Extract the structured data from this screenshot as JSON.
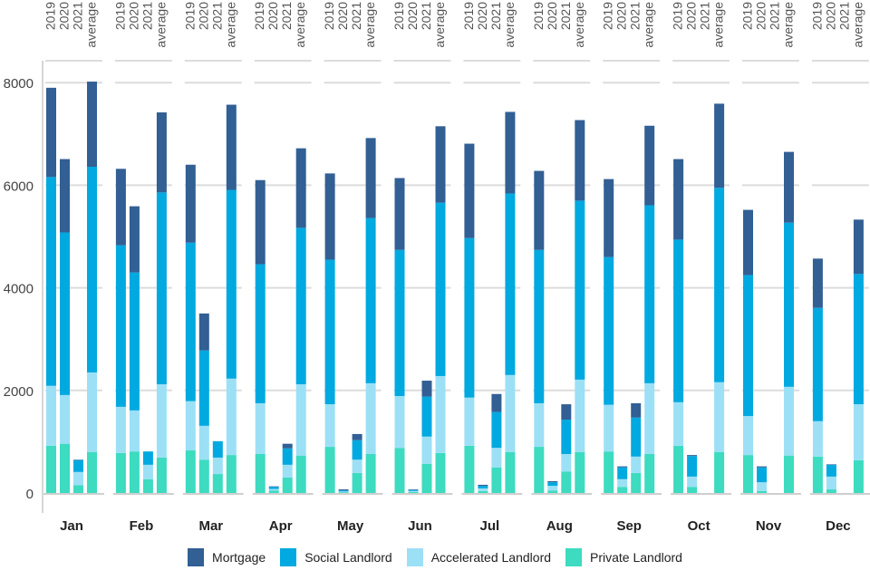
{
  "chart_data": {
    "type": "bar",
    "stacked": true,
    "title": "",
    "xlabel": "",
    "ylabel": "",
    "ylim": [
      0,
      8400
    ],
    "yticks": [
      0,
      2000,
      4000,
      6000,
      8000
    ],
    "grid": true,
    "legend_position": "bottom",
    "categories": [
      "Jan",
      "Feb",
      "Mar",
      "Apr",
      "May",
      "Jun",
      "Jul",
      "Aug",
      "Sep",
      "Oct",
      "Nov",
      "Dec"
    ],
    "subcategories": [
      "2019",
      "2020",
      "2021",
      "average"
    ],
    "series": [
      {
        "name": "Private Landlord",
        "color": "#3ddbc0",
        "values": {
          "2019": [
            920,
            780,
            830,
            760,
            900,
            880,
            920,
            900,
            810,
            920,
            740,
            710
          ],
          "2020": [
            960,
            810,
            650,
            50,
            15,
            20,
            40,
            50,
            120,
            120,
            40,
            70
          ],
          "2021": [
            150,
            270,
            370,
            300,
            390,
            570,
            500,
            420,
            390,
            null,
            null,
            null
          ],
          "average": [
            800,
            690,
            740,
            730,
            760,
            780,
            800,
            800,
            760,
            800,
            730,
            640
          ]
        }
      },
      {
        "name": "Accelerated Landlord",
        "color": "#9ce0f6",
        "values": {
          "2019": [
            1170,
            900,
            960,
            990,
            830,
            1010,
            940,
            850,
            910,
            850,
            760,
            690
          ],
          "2020": [
            950,
            800,
            660,
            30,
            15,
            20,
            50,
            90,
            150,
            200,
            170,
            250
          ],
          "2021": [
            260,
            280,
            320,
            250,
            260,
            530,
            380,
            340,
            320,
            null,
            null,
            null
          ],
          "average": [
            1550,
            1430,
            1490,
            1390,
            1380,
            1500,
            1500,
            1410,
            1380,
            1360,
            1340,
            1090
          ]
        }
      },
      {
        "name": "Social Landlord",
        "color": "#00a9e0",
        "values": {
          "2019": [
            4070,
            3150,
            3090,
            2710,
            2820,
            2850,
            3110,
            2990,
            2880,
            3170,
            2750,
            2210
          ],
          "2020": [
            3170,
            2690,
            1470,
            40,
            20,
            20,
            50,
            70,
            230,
            400,
            290,
            230
          ],
          "2021": [
            230,
            260,
            320,
            320,
            380,
            780,
            700,
            670,
            760,
            null,
            null,
            null
          ],
          "average": [
            4010,
            3740,
            3680,
            3050,
            3220,
            3380,
            3540,
            3490,
            3470,
            3790,
            3200,
            2540
          ]
        }
      },
      {
        "name": "Mortgage",
        "color": "#325f94",
        "values": {
          "2019": [
            1740,
            1490,
            1520,
            1640,
            1680,
            1400,
            1840,
            1540,
            1520,
            1570,
            1270,
            960
          ],
          "2020": [
            1430,
            1290,
            720,
            10,
            20,
            10,
            20,
            20,
            20,
            20,
            20,
            10
          ],
          "2021": [
            10,
            0,
            0,
            90,
            120,
            310,
            350,
            300,
            280,
            null,
            null,
            null
          ],
          "average": [
            1660,
            1560,
            1660,
            1550,
            1560,
            1490,
            1590,
            1570,
            1550,
            1640,
            1380,
            1060
          ]
        }
      }
    ],
    "legend": [
      {
        "name": "Mortgage",
        "color": "#325f94"
      },
      {
        "name": "Social Landlord",
        "color": "#00a9e0"
      },
      {
        "name": "Accelerated Landlord",
        "color": "#9ce0f6"
      },
      {
        "name": "Private Landlord",
        "color": "#3ddbc0"
      }
    ]
  }
}
